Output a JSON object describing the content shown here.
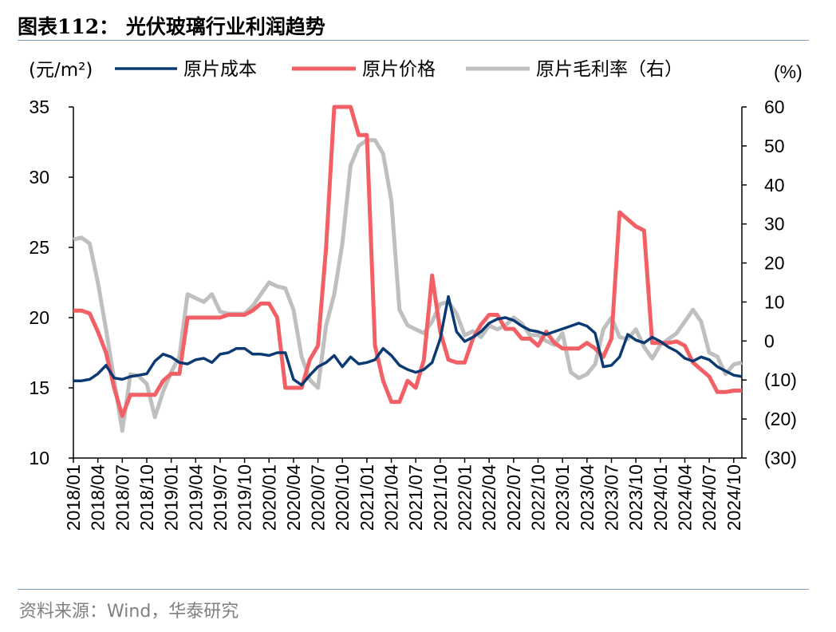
{
  "title": "图表112：  光伏玻璃行业利润趋势",
  "source": "资料来源：Wind，华泰研究",
  "colors": {
    "cost": "#0b3a73",
    "price": "#f26065",
    "margin": "#bfbfbf",
    "rule": "#7f9fc1"
  },
  "chart_data": {
    "type": "line",
    "left_unit": "(元/m²)",
    "right_unit": "(%)",
    "ylim_left": [
      10,
      35
    ],
    "ylim_right": [
      -30,
      60
    ],
    "yticks_left": [
      "10",
      "15",
      "20",
      "25",
      "30",
      "35"
    ],
    "yticks_right": [
      "(30)",
      "(20)",
      "(10)",
      "0",
      "10",
      "20",
      "30",
      "40",
      "50",
      "60"
    ],
    "x_tick_labels": [
      "2018/01",
      "2018/04",
      "2018/07",
      "2018/10",
      "2019/01",
      "2019/04",
      "2019/07",
      "2019/10",
      "2020/01",
      "2020/04",
      "2020/07",
      "2020/10",
      "2021/01",
      "2021/04",
      "2021/07",
      "2021/10",
      "2022/01",
      "2022/04",
      "2022/07",
      "2022/10",
      "2023/01",
      "2023/04",
      "2023/07",
      "2023/10",
      "2024/01",
      "2024/04",
      "2024/07",
      "2024/10"
    ],
    "x": [
      "2018/01",
      "2018/02",
      "2018/03",
      "2018/04",
      "2018/05",
      "2018/06",
      "2018/07",
      "2018/08",
      "2018/09",
      "2018/10",
      "2018/11",
      "2018/12",
      "2019/01",
      "2019/02",
      "2019/03",
      "2019/04",
      "2019/05",
      "2019/06",
      "2019/07",
      "2019/08",
      "2019/09",
      "2019/10",
      "2019/11",
      "2019/12",
      "2020/01",
      "2020/02",
      "2020/03",
      "2020/04",
      "2020/05",
      "2020/06",
      "2020/07",
      "2020/08",
      "2020/09",
      "2020/10",
      "2020/11",
      "2020/12",
      "2021/01",
      "2021/02",
      "2021/03",
      "2021/04",
      "2021/05",
      "2021/06",
      "2021/07",
      "2021/08",
      "2021/09",
      "2021/10",
      "2021/11",
      "2021/12",
      "2022/01",
      "2022/02",
      "2022/03",
      "2022/04",
      "2022/05",
      "2022/06",
      "2022/07",
      "2022/08",
      "2022/09",
      "2022/10",
      "2022/11",
      "2022/12",
      "2023/01",
      "2023/02",
      "2023/03",
      "2023/04",
      "2023/05",
      "2023/06",
      "2023/07",
      "2023/08",
      "2023/09",
      "2023/10",
      "2023/11",
      "2023/12",
      "2024/01",
      "2024/02",
      "2024/03",
      "2024/04",
      "2024/05",
      "2024/06",
      "2024/07",
      "2024/08",
      "2024/09",
      "2024/10",
      "2024/11"
    ],
    "series": [
      {
        "name": "原片成本",
        "axis": "left",
        "color": "#0b3a73",
        "values": [
          15.5,
          15.5,
          15.6,
          16.0,
          16.6,
          15.7,
          15.6,
          15.8,
          15.9,
          16.0,
          16.9,
          17.4,
          17.2,
          16.8,
          16.7,
          17.0,
          17.1,
          16.8,
          17.4,
          17.5,
          17.8,
          17.8,
          17.4,
          17.4,
          17.3,
          17.5,
          17.5,
          15.6,
          15.2,
          15.9,
          16.5,
          16.8,
          17.3,
          16.5,
          17.2,
          16.7,
          16.8,
          17.0,
          17.8,
          17.3,
          16.6,
          16.3,
          16.1,
          16.3,
          16.8,
          18.5,
          21.5,
          19.0,
          18.3,
          18.6,
          19.0,
          19.6,
          19.9,
          20.0,
          19.8,
          19.4,
          19.1,
          19.0,
          18.8,
          19.0,
          19.2,
          19.4,
          19.6,
          19.4,
          18.9,
          16.5,
          16.6,
          17.2,
          18.8,
          18.4,
          18.2,
          18.6,
          18.3,
          17.9,
          17.6,
          17.1,
          16.9,
          17.2,
          17.0,
          16.5,
          16.2,
          15.9,
          15.8
        ]
      },
      {
        "name": "原片价格",
        "axis": "left",
        "color": "#f26065",
        "values": [
          20.5,
          20.5,
          20.3,
          19.0,
          17.5,
          15.0,
          13.0,
          14.5,
          14.5,
          14.5,
          14.5,
          15.5,
          16.0,
          16.0,
          20.0,
          20.0,
          20.0,
          20.0,
          20.0,
          20.2,
          20.2,
          20.2,
          20.5,
          21.0,
          21.0,
          20.0,
          15.0,
          15.0,
          15.0,
          17.0,
          18.0,
          25.0,
          35.0,
          35.0,
          35.0,
          33.0,
          33.0,
          18.0,
          15.5,
          14.0,
          14.0,
          15.5,
          15.0,
          17.0,
          23.0,
          19.0,
          17.0,
          16.8,
          16.8,
          18.5,
          19.5,
          20.2,
          20.2,
          19.2,
          19.2,
          18.5,
          18.5,
          18.0,
          19.0,
          18.2,
          17.8,
          17.8,
          17.8,
          18.2,
          17.8,
          17.2,
          18.5,
          27.5,
          27.0,
          26.5,
          26.2,
          18.2,
          18.2,
          18.2,
          18.3,
          18.0,
          16.8,
          16.3,
          15.8,
          14.7,
          14.7,
          14.8,
          14.8
        ]
      },
      {
        "name": "原片毛利率（右）",
        "axis": "right",
        "color": "#bfbfbf",
        "values": [
          26.0,
          26.5,
          25.0,
          15.0,
          3.0,
          -10.0,
          -23.0,
          -8.5,
          -9.0,
          -11.0,
          -19.5,
          -13.0,
          -8.0,
          -4.0,
          12.0,
          11.0,
          10.0,
          12.0,
          7.5,
          7.0,
          7.0,
          7.0,
          9.0,
          12.0,
          15.0,
          14.0,
          13.5,
          8.0,
          -4.0,
          -10.0,
          -12.0,
          4.0,
          12.0,
          25.0,
          45.0,
          50.0,
          51.5,
          51.5,
          48.0,
          36.0,
          8.0,
          4.0,
          3.0,
          2.0,
          5.0,
          9.5,
          10.0,
          7.0,
          1.5,
          2.5,
          1.0,
          4.0,
          3.0,
          4.0,
          6.0,
          4.5,
          1.5,
          1.5,
          0.0,
          -1.0,
          2.0,
          -8.0,
          -9.5,
          -8.5,
          -6.0,
          3.0,
          6.0,
          1.0,
          0.5,
          3.0,
          -1.5,
          -4.5,
          -1.0,
          0.5,
          2.0,
          5.0,
          8.0,
          5.0,
          -3.0,
          -4.0,
          -8.5,
          -6.0,
          -5.5
        ]
      }
    ]
  }
}
